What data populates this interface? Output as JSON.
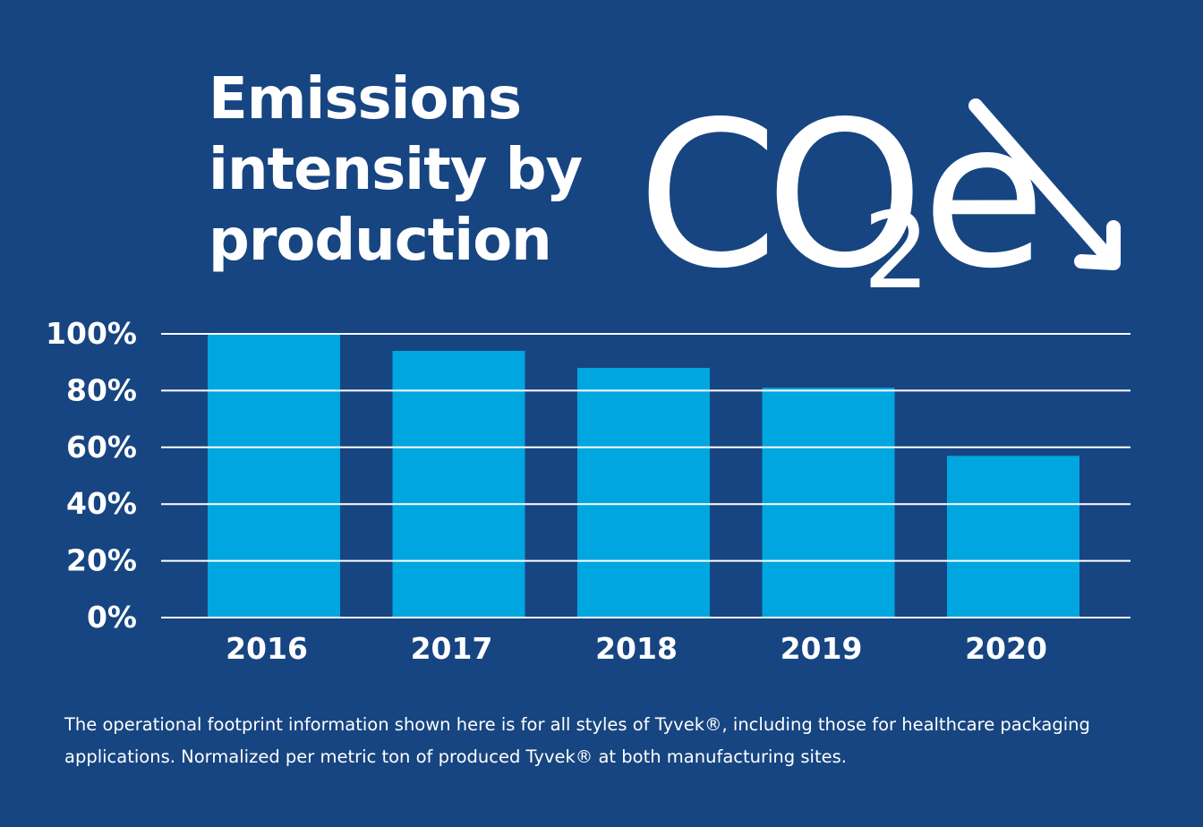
{
  "title_lines": [
    "Emissions",
    "intensity by",
    "production"
  ],
  "co2e_label": {
    "main": "CO",
    "subscript": "2",
    "suffix": "e",
    "arrow_icon": "arrow-down-right-icon"
  },
  "colors": {
    "background": "#174581",
    "bar": "#00a6df",
    "gridline": "#ffffff",
    "text": "#ffffff"
  },
  "chart_data": {
    "type": "bar",
    "title": "Emissions intensity by production",
    "xlabel": "",
    "ylabel": "",
    "categories": [
      "2016",
      "2017",
      "2018",
      "2019",
      "2020"
    ],
    "values": [
      100,
      94,
      88,
      81,
      57
    ],
    "unit": "%",
    "ylim": [
      0,
      100
    ],
    "yticks": [
      0,
      20,
      40,
      60,
      80,
      100
    ],
    "ytick_labels": [
      "0%",
      "20%",
      "40%",
      "60%",
      "80%",
      "100%"
    ],
    "grid": true,
    "legend": "none"
  },
  "footnote": "The operational footprint information shown here is for all styles of Tyvek®, including those for healthcare packaging applications. Normalized per metric ton of produced Tyvek® at both manufacturing sites."
}
